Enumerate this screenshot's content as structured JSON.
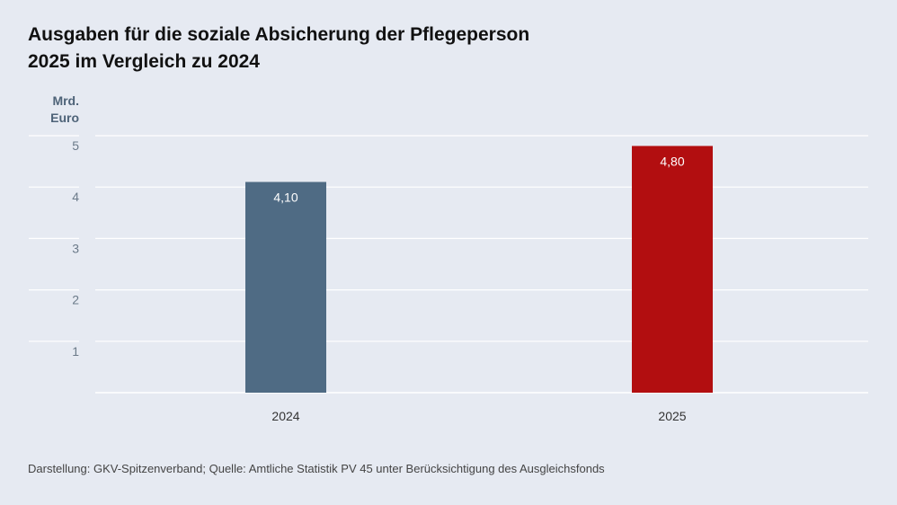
{
  "title_lines": [
    "Ausgaben für die soziale Absicherung der Pflegeperson",
    "2025 im Vergleich zu 2024"
  ],
  "unit_lines": [
    "Mrd.",
    "Euro"
  ],
  "source": "Darstellung: GKV-Spitzenverband; Quelle: Amtliche Statistik PV 45 unter Berücksichtigung des Ausgleichsfonds",
  "chart_data": {
    "type": "bar",
    "title": "Ausgaben für die soziale Absicherung der Pflegeperson 2025 im Vergleich zu 2024",
    "ylabel": "Mrd. Euro",
    "categories": [
      "2024",
      "2025"
    ],
    "values": [
      4.1,
      4.8
    ],
    "value_labels": [
      "4,10",
      "4,80"
    ],
    "bar_colors": [
      "#4f6b84",
      "#b20e10"
    ],
    "ylim": [
      0,
      5
    ],
    "yticks": [
      1,
      2,
      3,
      4,
      5
    ],
    "grid": true,
    "legend": "none"
  }
}
